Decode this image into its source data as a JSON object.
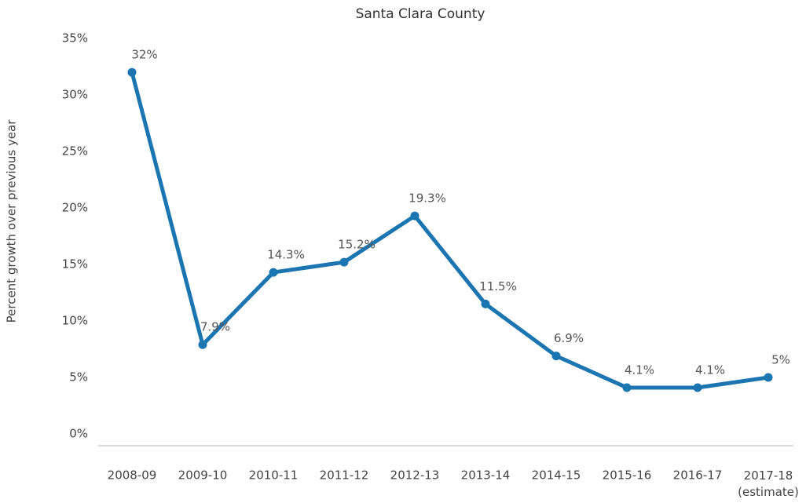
{
  "chart_data": {
    "type": "line",
    "title": "Santa Clara County",
    "y_label": "Percent growth over previous year",
    "categories": [
      "2008-09",
      "2009-10",
      "2010-11",
      "2011-12",
      "2012-13",
      "2013-14",
      "2014-15",
      "2015-16",
      "2016-17",
      "2017-18\n(estimate)"
    ],
    "series": [
      {
        "name": "Santa Clara County",
        "color": "#1b75b0",
        "values": [
          32,
          7.9,
          14.3,
          15.2,
          19.3,
          11.5,
          6.9,
          4.1,
          4.1,
          5
        ],
        "value_labels": [
          "32%",
          "7.9%",
          "14.3%",
          "15.2%",
          "19.3%",
          "11.5%",
          "6.9%",
          "4.1%",
          "4.1%",
          "5%"
        ]
      }
    ],
    "ylim": [
      0,
      35
    ],
    "yticks": [
      {
        "value": 0,
        "label": "0%"
      },
      {
        "value": 5,
        "label": "5%"
      },
      {
        "value": 10,
        "label": "10%"
      },
      {
        "value": 15,
        "label": "15%"
      },
      {
        "value": 20,
        "label": "20%"
      },
      {
        "value": 25,
        "label": "25%"
      },
      {
        "value": 30,
        "label": "30%"
      },
      {
        "value": 35,
        "label": "35%"
      }
    ],
    "grid": false
  }
}
